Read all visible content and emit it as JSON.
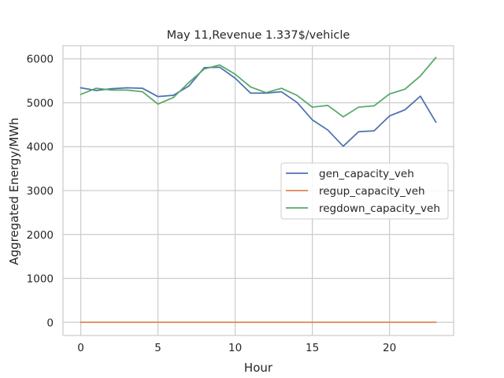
{
  "chart_data": {
    "type": "line",
    "title": "May 11,Revenue 1.337$/vehicle",
    "xlabel": "Hour",
    "ylabel": "Aggregated Energy/MWh",
    "xlim": [
      -1.15,
      24.15
    ],
    "ylim": [
      -300,
      6300
    ],
    "xticks": [
      0,
      5,
      10,
      15,
      20
    ],
    "yticks": [
      0,
      1000,
      2000,
      3000,
      4000,
      5000,
      6000
    ],
    "grid": true,
    "legend_position": "center-right",
    "x": [
      0,
      1,
      2,
      3,
      4,
      5,
      6,
      7,
      8,
      9,
      10,
      11,
      12,
      13,
      14,
      15,
      16,
      17,
      18,
      19,
      20,
      21,
      22,
      23
    ],
    "series": [
      {
        "name": "gen_capacity_veh",
        "color": "#4c72b0",
        "values": [
          5340,
          5280,
          5320,
          5340,
          5330,
          5140,
          5170,
          5380,
          5800,
          5810,
          5560,
          5220,
          5220,
          5250,
          5010,
          4610,
          4380,
          4010,
          4340,
          4360,
          4700,
          4840,
          5150,
          4560
        ]
      },
      {
        "name": "regup_capacity_veh",
        "color": "#dd8452",
        "values": [
          0,
          0,
          0,
          0,
          0,
          0,
          0,
          0,
          0,
          0,
          0,
          0,
          0,
          0,
          0,
          0,
          0,
          0,
          0,
          0,
          0,
          0,
          0,
          0
        ]
      },
      {
        "name": "regdown_capacity_veh",
        "color": "#55a868",
        "values": [
          5190,
          5330,
          5290,
          5290,
          5250,
          4970,
          5120,
          5460,
          5770,
          5860,
          5650,
          5360,
          5230,
          5330,
          5170,
          4900,
          4940,
          4680,
          4900,
          4930,
          5200,
          5310,
          5610,
          6030
        ]
      }
    ]
  }
}
